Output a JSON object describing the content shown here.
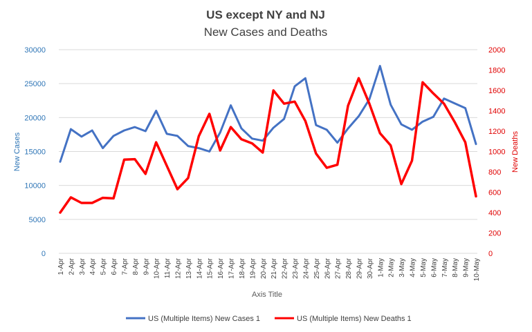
{
  "chart_data": {
    "type": "line",
    "title": "US except NY and NJ",
    "subtitle": "New Cases and Deaths",
    "xlabel": "Axis Title",
    "ylabel": "New Cases",
    "y2label": "New Deaths",
    "ylim": [
      0,
      30000
    ],
    "y2lim": [
      0,
      2000
    ],
    "yticks": [
      "0",
      "5000",
      "10000",
      "15000",
      "20000",
      "25000",
      "30000"
    ],
    "y2ticks": [
      "0",
      "200",
      "400",
      "600",
      "800",
      "1000",
      "1200",
      "1400",
      "1600",
      "1800",
      "2000"
    ],
    "categories": [
      "1-Apr",
      "2-Apr",
      "3-Apr",
      "4-Apr",
      "5-Apr",
      "6-Apr",
      "7-Apr",
      "8-Apr",
      "9-Apr",
      "10-Apr",
      "11-Apr",
      "12-Apr",
      "13-Apr",
      "14-Apr",
      "15-Apr",
      "16-Apr",
      "17-Apr",
      "18-Apr",
      "19-Apr",
      "20-Apr",
      "21-Apr",
      "22-Apr",
      "23-Apr",
      "24-Apr",
      "25-Apr",
      "26-Apr",
      "27-Apr",
      "28-Apr",
      "29-Apr",
      "30-Apr",
      "1-May",
      "2-May",
      "3-May",
      "4-May",
      "5-May",
      "6-May",
      "7-May",
      "8-May",
      "9-May",
      "10-May"
    ],
    "series": [
      {
        "name": "US (Multiple Items) New Cases 1",
        "axis": "left",
        "color": "#4472c4",
        "values": [
          13500,
          18300,
          17200,
          18100,
          15500,
          17300,
          18100,
          18600,
          18000,
          21000,
          17600,
          17300,
          15800,
          15500,
          15000,
          17800,
          21800,
          18400,
          16900,
          16600,
          18500,
          19800,
          24600,
          25800,
          18900,
          18200,
          16300,
          18400,
          20200,
          22700,
          27600,
          21900,
          19000,
          18200,
          19400,
          20100,
          22800,
          22100,
          21400,
          16100
        ]
      },
      {
        "name": "US (Multiple Items) New Deaths 1",
        "axis": "right",
        "color": "#ff0000",
        "values": [
          400,
          550,
          495,
          495,
          545,
          540,
          920,
          925,
          780,
          1090,
          860,
          630,
          740,
          1150,
          1370,
          1010,
          1240,
          1120,
          1080,
          990,
          1600,
          1470,
          1490,
          1300,
          980,
          840,
          870,
          1450,
          1720,
          1470,
          1180,
          1060,
          680,
          910,
          1680,
          1570,
          1470,
          1290,
          1090,
          560
        ]
      }
    ],
    "legend_position": "bottom",
    "grid": true
  }
}
